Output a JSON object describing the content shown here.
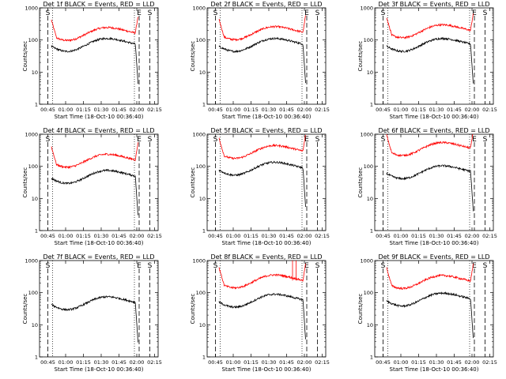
{
  "figure": {
    "panel_title_suffix": "BLACK = Events, RED = LLD",
    "xlabel": "Start Time (18-Oct-10 00:36:40)",
    "ylabel": "Counts/sec",
    "x_ticks": [
      "00:45",
      "01:00",
      "01:15",
      "01:30",
      "01:45",
      "02:00",
      "02:15"
    ],
    "y_ticks": [
      "1",
      "10",
      "100",
      "1000"
    ],
    "colors": {
      "events": "#000000",
      "lld": "#ff0000"
    }
  },
  "chart_data": [
    {
      "type": "line",
      "title": "Det 1f",
      "events_level": "75",
      "lld_level": "165",
      "lld_spikes": [],
      "markers": [
        {
          "label": "S",
          "x": "00:45"
        },
        {
          "label": "E",
          "x": "02:02"
        },
        {
          "label": "S",
          "x": "02:11"
        }
      ],
      "x_range": [
        "00:38",
        "02:18"
      ],
      "ylim": [
        1,
        1000
      ],
      "yscale": "log"
    },
    {
      "type": "line",
      "title": "Det 2f",
      "events_level": "75",
      "lld_level": "175",
      "lld_spikes": [],
      "markers": [
        {
          "label": "S",
          "x": "00:45"
        },
        {
          "label": "E",
          "x": "02:02"
        },
        {
          "label": "S",
          "x": "02:11"
        }
      ],
      "x_range": [
        "00:38",
        "02:18"
      ],
      "ylim": [
        1,
        1000
      ],
      "yscale": "log"
    },
    {
      "type": "line",
      "title": "Det 3f",
      "events_level": "75",
      "lld_level": "200",
      "lld_spikes": [],
      "markers": [
        {
          "label": "S",
          "x": "00:45"
        },
        {
          "label": "E",
          "x": "02:02"
        },
        {
          "label": "S",
          "x": "02:11"
        }
      ],
      "x_range": [
        "00:38",
        "02:18"
      ],
      "ylim": [
        1,
        1000
      ],
      "yscale": "log"
    },
    {
      "type": "line",
      "title": "Det 4f",
      "events_level": "50",
      "lld_level": "160",
      "lld_spikes": [],
      "markers": [
        {
          "label": "S",
          "x": "00:45"
        },
        {
          "label": "E",
          "x": "02:02"
        },
        {
          "label": "S",
          "x": "02:11"
        }
      ],
      "x_range": [
        "00:38",
        "02:18"
      ],
      "ylim": [
        1,
        1000
      ],
      "yscale": "log"
    },
    {
      "type": "line",
      "title": "Det 5f",
      "events_level": "90",
      "lld_level": "300",
      "lld_spikes": [],
      "markers": [
        {
          "label": "S",
          "x": "00:45"
        },
        {
          "label": "E",
          "x": "02:02"
        },
        {
          "label": "S",
          "x": "02:11"
        }
      ],
      "x_range": [
        "00:38",
        "02:18"
      ],
      "ylim": [
        1,
        1000
      ],
      "yscale": "log"
    },
    {
      "type": "line",
      "title": "Det 6f",
      "events_level": "70",
      "lld_level": "370",
      "lld_spikes": [],
      "markers": [
        {
          "label": "S",
          "x": "00:45"
        },
        {
          "label": "E",
          "x": "02:02"
        },
        {
          "label": "S",
          "x": "02:11"
        }
      ],
      "x_range": [
        "00:38",
        "02:18"
      ],
      "ylim": [
        1,
        1000
      ],
      "yscale": "log"
    },
    {
      "type": "line",
      "title": "Det 7f",
      "events_level": "50",
      "lld_level": "",
      "lld_spikes": [],
      "markers": [
        {
          "label": "S",
          "x": "00:45"
        },
        {
          "label": "E",
          "x": "02:02"
        },
        {
          "label": "S",
          "x": "02:11"
        }
      ],
      "x_range": [
        "00:38",
        "02:18"
      ],
      "ylim": [
        1,
        1000
      ],
      "yscale": "log"
    },
    {
      "type": "line",
      "title": "Det 8f",
      "events_level": "60",
      "lld_level": "240",
      "lld_spikes": [
        {
          "x": "01:50",
          "y": "1000"
        },
        {
          "x": "01:53",
          "y": "1000"
        }
      ],
      "markers": [
        {
          "label": "S",
          "x": "00:45"
        },
        {
          "label": "E",
          "x": "02:02"
        },
        {
          "label": "S",
          "x": "02:11"
        }
      ],
      "x_range": [
        "00:38",
        "02:18"
      ],
      "ylim": [
        1,
        1000
      ],
      "yscale": "log"
    },
    {
      "type": "line",
      "title": "Det 9f",
      "events_level": "65",
      "lld_level": "230",
      "lld_spikes": [],
      "markers": [
        {
          "label": "S",
          "x": "00:45"
        },
        {
          "label": "E",
          "x": "02:02"
        },
        {
          "label": "S",
          "x": "02:11"
        }
      ],
      "x_range": [
        "00:38",
        "02:18"
      ],
      "ylim": [
        1,
        1000
      ],
      "yscale": "log"
    }
  ]
}
